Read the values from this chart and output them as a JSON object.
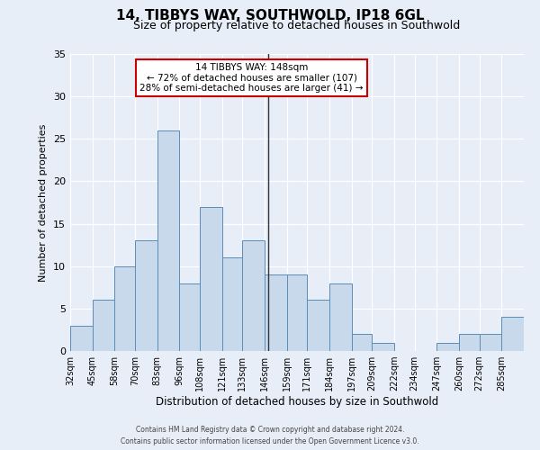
{
  "title": "14, TIBBYS WAY, SOUTHWOLD, IP18 6GL",
  "subtitle": "Size of property relative to detached houses in Southwold",
  "xlabel": "Distribution of detached houses by size in Southwold",
  "ylabel": "Number of detached properties",
  "bar_edges": [
    32,
    45,
    58,
    70,
    83,
    96,
    108,
    121,
    133,
    146,
    159,
    171,
    184,
    197,
    209,
    222,
    234,
    247,
    260,
    272,
    285
  ],
  "bar_heights": [
    3,
    6,
    10,
    13,
    26,
    8,
    17,
    11,
    13,
    9,
    9,
    6,
    8,
    2,
    1,
    0,
    0,
    1,
    2,
    2,
    4
  ],
  "bar_color": "#c9d9ec",
  "bar_edge_color": "#5b8db8",
  "vline_x": 148,
  "vline_color": "#333333",
  "ylim": [
    0,
    35
  ],
  "yticks": [
    0,
    5,
    10,
    15,
    20,
    25,
    30,
    35
  ],
  "annotation_title": "14 TIBBYS WAY: 148sqm",
  "annotation_line1": "← 72% of detached houses are smaller (107)",
  "annotation_line2": "28% of semi-detached houses are larger (41) →",
  "annotation_box_color": "#ffffff",
  "annotation_box_edge": "#cc0000",
  "footer_line1": "Contains HM Land Registry data © Crown copyright and database right 2024.",
  "footer_line2": "Contains public sector information licensed under the Open Government Licence v3.0.",
  "background_color": "#e8eef8",
  "tick_labels": [
    "32sqm",
    "45sqm",
    "58sqm",
    "70sqm",
    "83sqm",
    "96sqm",
    "108sqm",
    "121sqm",
    "133sqm",
    "146sqm",
    "159sqm",
    "171sqm",
    "184sqm",
    "197sqm",
    "209sqm",
    "222sqm",
    "234sqm",
    "247sqm",
    "260sqm",
    "272sqm",
    "285sqm"
  ],
  "title_fontsize": 11,
  "subtitle_fontsize": 9,
  "ylabel_fontsize": 8,
  "xlabel_fontsize": 8.5,
  "tick_fontsize": 7,
  "ytick_fontsize": 8,
  "annotation_fontsize": 7.5,
  "footer_fontsize": 5.5
}
